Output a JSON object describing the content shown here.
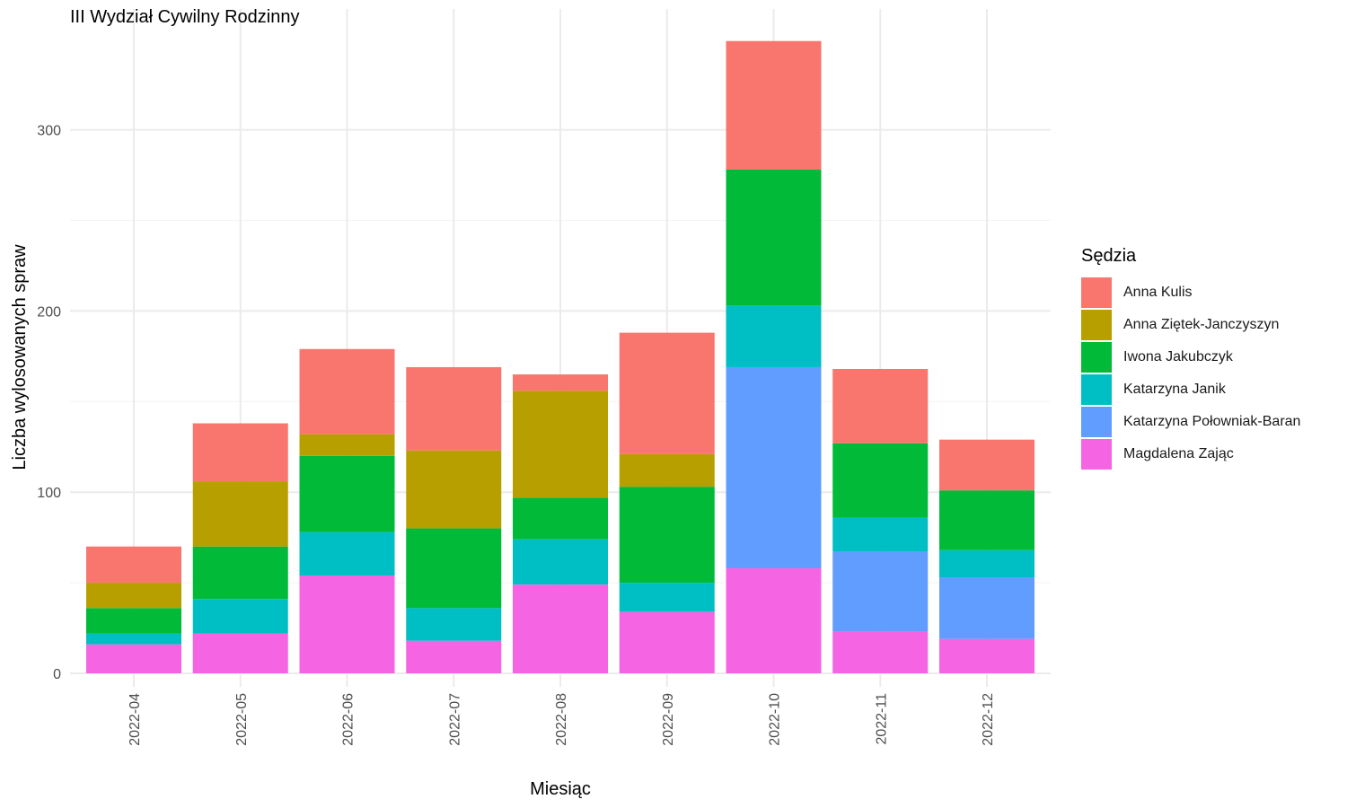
{
  "chart_data": {
    "type": "bar",
    "stacked": true,
    "title": "III Wydział Cywilny Rodzinny",
    "xlabel": "Miesiąc",
    "ylabel": "Liczba wylosowanych spraw",
    "legend_title": "Sędzia",
    "legend_position": "right",
    "grid": true,
    "ylim": [
      0,
      350
    ],
    "yticks": [
      0,
      100,
      200,
      300
    ],
    "categories": [
      "2022-04",
      "2022-05",
      "2022-06",
      "2022-07",
      "2022-08",
      "2022-09",
      "2022-10",
      "2022-11",
      "2022-12"
    ],
    "series": [
      {
        "name": "Anna Kulis",
        "color": "#F8766D",
        "values": [
          20,
          32,
          47,
          46,
          9,
          67,
          71,
          41,
          28
        ]
      },
      {
        "name": "Anna Ziętek-Janczyszyn",
        "color": "#B79F00",
        "values": [
          14,
          36,
          12,
          43,
          59,
          18,
          0,
          0,
          0
        ]
      },
      {
        "name": "Iwona Jakubczyk",
        "color": "#00BA38",
        "values": [
          14,
          29,
          42,
          44,
          23,
          53,
          75,
          41,
          33
        ]
      },
      {
        "name": "Katarzyna Janik",
        "color": "#00BFC4",
        "values": [
          6,
          19,
          24,
          18,
          25,
          16,
          34,
          19,
          15
        ]
      },
      {
        "name": "Katarzyna Połowniak-Baran",
        "color": "#619CFF",
        "values": [
          0,
          0,
          0,
          0,
          0,
          0,
          111,
          44,
          34
        ]
      },
      {
        "name": "Magdalena Zając",
        "color": "#F564E3",
        "values": [
          16,
          22,
          54,
          18,
          49,
          34,
          58,
          23,
          19
        ]
      }
    ]
  }
}
